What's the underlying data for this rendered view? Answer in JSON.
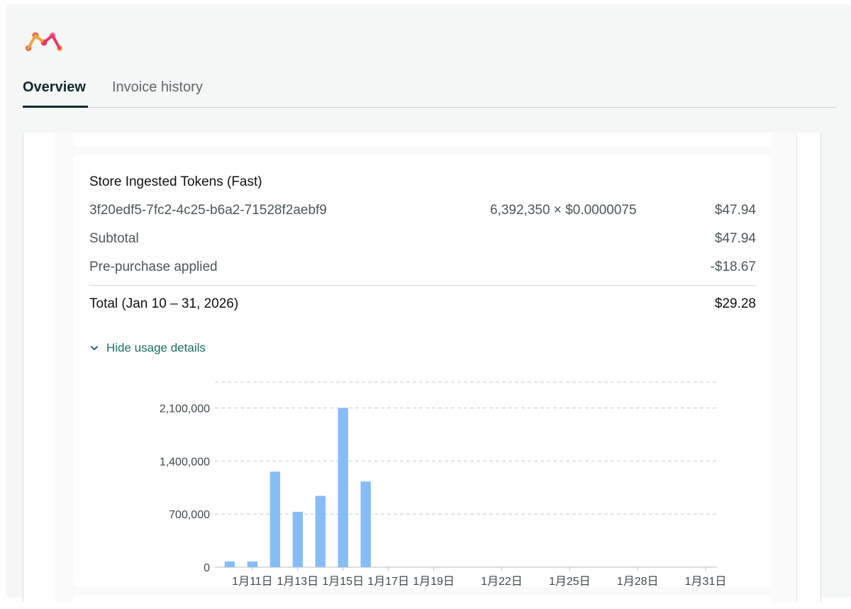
{
  "tabs": [
    {
      "label": "Overview",
      "active": true
    },
    {
      "label": "Invoice history",
      "active": false
    }
  ],
  "logo": {
    "colors": [
      "#f2a53a",
      "#ee5b3e",
      "#e63a63",
      "#f48aa0"
    ]
  },
  "usage_card": {
    "title": "Store Ingested Tokens (Fast)",
    "line_item": {
      "id": "3f20edf5-7fc2-4c25-b6a2-71528f2aebf9",
      "calc": "6,392,350 × $0.0000075",
      "amount": "$47.94"
    },
    "subtotal": {
      "label": "Subtotal",
      "amount": "$47.94"
    },
    "prepurchase": {
      "label": "Pre-purchase applied",
      "amount": "-$18.67"
    },
    "total": {
      "label": "Total (Jan 10 – 31, 2026)",
      "amount": "$29.28"
    },
    "toggle_label": "Hide usage details"
  },
  "chart_data": {
    "type": "bar",
    "bar_color": "#86bdf7",
    "x": [
      "1月10日",
      "1月11日",
      "1月12日",
      "1月13日",
      "1月14日",
      "1月15日",
      "1月16日",
      "1月17日",
      "1月18日",
      "1月19日",
      "1月20日",
      "1月21日",
      "1月22日",
      "1月23日",
      "1月24日",
      "1月25日",
      "1月26日",
      "1月27日",
      "1月28日",
      "1月29日",
      "1月30日",
      "1月31日"
    ],
    "values": [
      75000,
      75000,
      1260000,
      730000,
      940000,
      2100000,
      1130000,
      0,
      0,
      0,
      0,
      0,
      0,
      0,
      0,
      0,
      0,
      0,
      0,
      0,
      0,
      0
    ],
    "x_tick_labels": [
      "1月11日",
      "1月13日",
      "1月15日",
      "1月17日",
      "1月19日",
      "1月22日",
      "1月25日",
      "1月28日",
      "1月31日"
    ],
    "y_ticks": [
      0,
      700000,
      1400000,
      2100000
    ],
    "y_tick_labels": [
      "0",
      "700,000",
      "1,400,000",
      "2,100,000"
    ],
    "ylim": [
      0,
      2450000
    ],
    "grid": true,
    "legend": "none"
  }
}
